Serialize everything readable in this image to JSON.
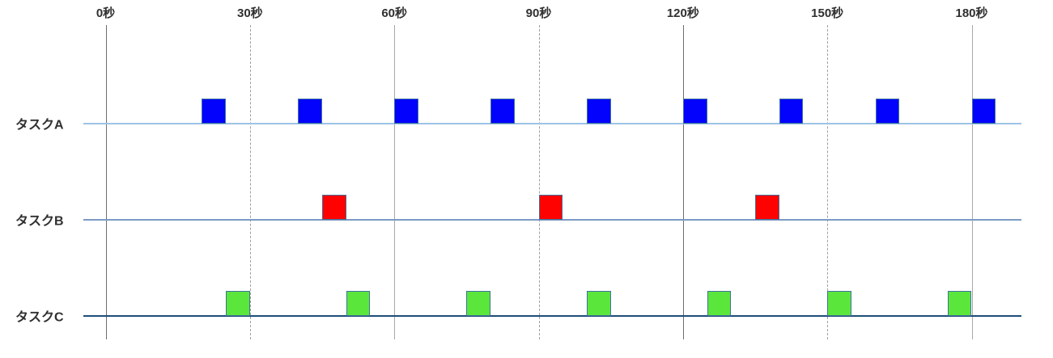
{
  "chart_data": {
    "type": "timeline",
    "title": "",
    "x_axis": {
      "unit": "秒",
      "ticks_seconds": [
        0,
        30,
        60,
        90,
        120,
        150,
        180
      ],
      "tick_labels": [
        "0秒",
        "30秒",
        "60秒",
        "90秒",
        "120秒",
        "150秒",
        "180秒"
      ],
      "axis_range_seconds": [
        0,
        180
      ],
      "grid": "vertical-on",
      "gridline_styles": [
        "solid-dark",
        "dashed",
        "solid-light",
        "dashed",
        "solid-dark",
        "dashed",
        "solid-light"
      ]
    },
    "legend": "none",
    "bar_border_color": "#41719C",
    "text_color": "#303030",
    "tasks": [
      {
        "name": "タスクA",
        "bar_color": "#0202FD",
        "baseline_color": "#9DC3E6",
        "duration_seconds": 5,
        "start_times_seconds": [
          20,
          40,
          60,
          80,
          100,
          120,
          140,
          160,
          180
        ]
      },
      {
        "name": "タスクB",
        "bar_color": "#FE0202",
        "baseline_color": "#7C9AC4",
        "duration_seconds": 5,
        "start_times_seconds": [
          45,
          90,
          135
        ]
      },
      {
        "name": "タスクC",
        "bar_color": "#5BE63C",
        "baseline_color": "#1F4E79",
        "duration_seconds": 5,
        "start_times_seconds": [
          25,
          50,
          75,
          100,
          125,
          150,
          175
        ]
      }
    ]
  }
}
